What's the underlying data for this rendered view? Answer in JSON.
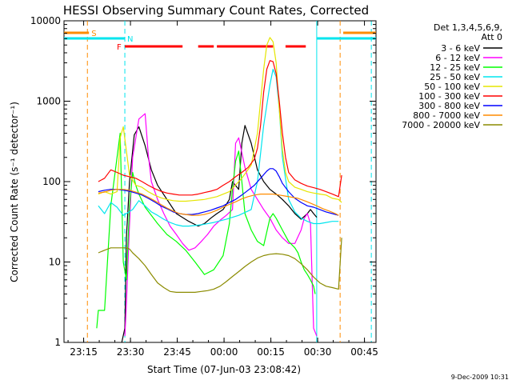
{
  "chart_data": {
    "type": "line",
    "title": "HESSI Observing Summary Count Rates, Corrected",
    "xlabel": "Start Time (07-Jun-03 23:08:42)",
    "ylabel": "Corrected Count Rate (s⁻¹ detector⁻¹)",
    "yscale": "log",
    "ylim": [
      1,
      10000
    ],
    "xlim_minutes": [
      0,
      100
    ],
    "x_ticks": [
      {
        "m": 6.3,
        "label": "23:15"
      },
      {
        "m": 21.3,
        "label": "23:30"
      },
      {
        "m": 36.3,
        "label": "23:45"
      },
      {
        "m": 51.3,
        "label": "00:00"
      },
      {
        "m": 66.3,
        "label": "00:15"
      },
      {
        "m": 81.3,
        "label": "00:30"
      },
      {
        "m": 96.3,
        "label": "00:45"
      }
    ],
    "y_ticks": [
      {
        "v": 1,
        "label": "1"
      },
      {
        "v": 10,
        "label": "10"
      },
      {
        "v": 100,
        "label": "100"
      },
      {
        "v": 1000,
        "label": "1000"
      },
      {
        "v": 10000,
        "label": "10000"
      }
    ],
    "legend_header": [
      "Det 1,3,4,5,6,9,",
      "Att 0"
    ],
    "legend_position": "right",
    "annotations": {
      "S": {
        "label": "S",
        "color": "#ff8c00",
        "intervals": [
          [
            0,
            8
          ],
          [
            89.5,
            100
          ]
        ]
      },
      "N": {
        "label": "N",
        "color": "#00e5ee",
        "intervals": [
          [
            0,
            19.5
          ],
          [
            81,
            100
          ]
        ]
      },
      "F": {
        "label": "F",
        "color": "#ff0000",
        "intervals": [
          [
            19.5,
            38
          ],
          [
            43,
            48
          ],
          [
            49,
            67
          ],
          [
            71,
            77.5
          ]
        ]
      }
    },
    "vlines": [
      {
        "m": 7.5,
        "color": "#ff8c00"
      },
      {
        "m": 19.5,
        "color": "#00e5ee"
      },
      {
        "m": 81,
        "color": "#00e5ee"
      },
      {
        "m": 88.5,
        "color": "#ff8c00"
      },
      {
        "m": 98.5,
        "color": "#00e5ee"
      }
    ],
    "series": [
      {
        "name": "3 - 6 keV",
        "color": "#000000",
        "x": [
          18.5,
          19.5,
          20,
          21,
          22.5,
          24,
          26,
          28,
          30,
          33,
          36,
          40,
          43,
          45,
          47,
          49,
          51,
          53,
          54,
          56,
          57,
          58,
          60,
          62,
          64,
          66,
          68,
          70,
          72,
          74,
          76,
          78,
          79,
          80,
          81
        ],
        "y": [
          1,
          1.5,
          20,
          100,
          380,
          480,
          280,
          140,
          90,
          60,
          40,
          32,
          28,
          30,
          35,
          40,
          45,
          60,
          100,
          80,
          300,
          500,
          300,
          140,
          100,
          80,
          70,
          60,
          50,
          40,
          34,
          40,
          45,
          40,
          36
        ]
      },
      {
        "name": "6 - 12 keV",
        "color": "#ff00ff",
        "x": [
          19.5,
          20,
          21,
          22,
          24,
          26,
          27,
          28,
          30,
          32,
          34,
          36,
          38,
          40,
          42,
          44,
          46,
          48,
          50,
          52,
          54,
          55,
          56,
          58,
          60,
          62,
          64,
          66,
          68,
          70,
          72,
          74,
          76,
          77,
          78,
          79,
          80,
          81
        ],
        "y": [
          1.2,
          3,
          30,
          200,
          600,
          700,
          220,
          100,
          60,
          40,
          28,
          22,
          17,
          14,
          15,
          18,
          22,
          28,
          33,
          38,
          45,
          300,
          350,
          150,
          80,
          60,
          45,
          35,
          25,
          20,
          17,
          17,
          25,
          35,
          40,
          30,
          1.5,
          1.2
        ]
      },
      {
        "name": "12 - 25 keV",
        "color": "#00ff00",
        "x": [
          10.5,
          11,
          13,
          15,
          17,
          18,
          19,
          20,
          21,
          22,
          23,
          24,
          26,
          28,
          30,
          33,
          36,
          39,
          42,
          45,
          48,
          51,
          53,
          54,
          55,
          56,
          57,
          58,
          60,
          62,
          64,
          66,
          67,
          68,
          70,
          72,
          74,
          75,
          76,
          77,
          78,
          79,
          80,
          80.5
        ],
        "y": [
          1.5,
          2.5,
          2.5,
          50,
          200,
          400,
          10,
          6,
          50,
          130,
          90,
          70,
          48,
          38,
          30,
          22,
          18,
          14,
          10,
          7,
          8,
          12,
          30,
          80,
          180,
          240,
          100,
          40,
          25,
          18,
          16,
          35,
          40,
          35,
          25,
          18,
          15,
          13,
          10,
          8,
          7,
          6,
          5,
          4
        ]
      },
      {
        "name": "25 - 50 keV",
        "color": "#00e5ee",
        "x": [
          11,
          13,
          15,
          17,
          19,
          20,
          22,
          24,
          26,
          28,
          30,
          32,
          34,
          36,
          38,
          40,
          44,
          48,
          52,
          56,
          60,
          62,
          64,
          66,
          67,
          68,
          69,
          70,
          72,
          74,
          76,
          78,
          80,
          82,
          84,
          86,
          88
        ],
        "y": [
          50,
          40,
          55,
          48,
          38,
          40,
          45,
          58,
          50,
          42,
          38,
          34,
          31,
          29,
          28,
          28,
          29,
          31,
          34,
          38,
          45,
          100,
          500,
          1600,
          2500,
          2000,
          800,
          200,
          60,
          42,
          35,
          32,
          30,
          30,
          31,
          32,
          32
        ]
      },
      {
        "name": "50 - 100 keV",
        "color": "#e5e500",
        "x": [
          11,
          13,
          15,
          17,
          18,
          19,
          21,
          23,
          25,
          27,
          29,
          31,
          33,
          35,
          37,
          39,
          41,
          45,
          49,
          53,
          57,
          60,
          62,
          64,
          65,
          66,
          67,
          68,
          69,
          70,
          71,
          72,
          74,
          76,
          78,
          80,
          82,
          84,
          86,
          88,
          89
        ],
        "y": [
          70,
          75,
          70,
          75,
          350,
          480,
          120,
          90,
          85,
          75,
          68,
          63,
          60,
          58,
          57,
          57,
          58,
          60,
          65,
          75,
          110,
          160,
          400,
          2500,
          5000,
          6200,
          5500,
          3000,
          800,
          250,
          130,
          100,
          85,
          80,
          75,
          72,
          70,
          68,
          62,
          60,
          55
        ]
      },
      {
        "name": "100 - 300 keV",
        "color": "#ff0000",
        "x": [
          11,
          13,
          15,
          17,
          19,
          21,
          23,
          25,
          27,
          29,
          31,
          33,
          35,
          37,
          39,
          41,
          43,
          45,
          47,
          49,
          51,
          53,
          55,
          57,
          59,
          61,
          62,
          63,
          64,
          65,
          66,
          67,
          68,
          69,
          70,
          71,
          72,
          74,
          76,
          78,
          80,
          82,
          84,
          86,
          88,
          89
        ],
        "y": [
          100,
          110,
          140,
          130,
          120,
          115,
          110,
          100,
          90,
          82,
          76,
          72,
          70,
          68,
          68,
          68,
          70,
          73,
          76,
          80,
          90,
          100,
          115,
          130,
          150,
          190,
          260,
          500,
          1300,
          2500,
          3200,
          3100,
          2200,
          1000,
          400,
          200,
          130,
          105,
          95,
          88,
          84,
          80,
          75,
          70,
          65,
          120
        ]
      },
      {
        "name": "300 - 800 keV",
        "color": "#0000ff",
        "x": [
          11,
          13,
          15,
          17,
          19,
          21,
          23,
          25,
          27,
          29,
          31,
          33,
          35,
          37,
          39,
          41,
          43,
          45,
          47,
          49,
          51,
          53,
          55,
          57,
          59,
          61,
          63,
          65,
          66,
          67,
          68,
          69,
          70,
          72,
          74,
          76,
          78,
          80,
          82,
          84,
          86,
          88
        ],
        "y": [
          75,
          78,
          80,
          80,
          78,
          76,
          72,
          68,
          62,
          56,
          50,
          46,
          42,
          40,
          39,
          39,
          40,
          42,
          44,
          47,
          50,
          55,
          60,
          68,
          78,
          90,
          110,
          135,
          145,
          145,
          135,
          115,
          95,
          75,
          62,
          55,
          50,
          48,
          45,
          42,
          40,
          38
        ]
      },
      {
        "name": "800 - 7000 keV",
        "color": "#ff8c00",
        "x": [
          11,
          13,
          15,
          17,
          19,
          21,
          23,
          25,
          27,
          29,
          31,
          33,
          35,
          37,
          39,
          41,
          43,
          45,
          47,
          49,
          51,
          53,
          55,
          57,
          59,
          61,
          63,
          65,
          67,
          69,
          71,
          73,
          75,
          77,
          79,
          81,
          83,
          85,
          87,
          88
        ],
        "y": [
          72,
          74,
          78,
          80,
          80,
          78,
          74,
          70,
          64,
          58,
          52,
          47,
          43,
          40,
          39,
          38,
          38,
          39,
          41,
          44,
          48,
          52,
          56,
          61,
          65,
          68,
          70,
          70,
          70,
          68,
          66,
          64,
          62,
          58,
          54,
          50,
          46,
          43,
          40,
          38
        ]
      },
      {
        "name": "7000 - 20000 keV",
        "color": "#8b8b00",
        "x": [
          11,
          13,
          15,
          17,
          19,
          20,
          21,
          22,
          24,
          26,
          28,
          30,
          32,
          34,
          36,
          38,
          40,
          42,
          44,
          46,
          48,
          50,
          52,
          54,
          56,
          58,
          60,
          62,
          64,
          66,
          68,
          70,
          72,
          74,
          76,
          78,
          80,
          82,
          84,
          86,
          88,
          89
        ],
        "y": [
          13,
          14,
          15,
          15,
          15,
          15,
          14.5,
          13,
          11,
          9,
          7,
          5.5,
          4.8,
          4.3,
          4.2,
          4.2,
          4.2,
          4.2,
          4.3,
          4.4,
          4.6,
          5,
          5.7,
          6.6,
          7.6,
          8.8,
          10,
          11.2,
          12,
          12.5,
          12.7,
          12.5,
          12,
          11,
          9.5,
          8,
          6.5,
          5.5,
          5,
          4.8,
          4.6,
          20
        ]
      }
    ]
  },
  "footer": {
    "date_stamp": "9-Dec-2009 10:31"
  }
}
